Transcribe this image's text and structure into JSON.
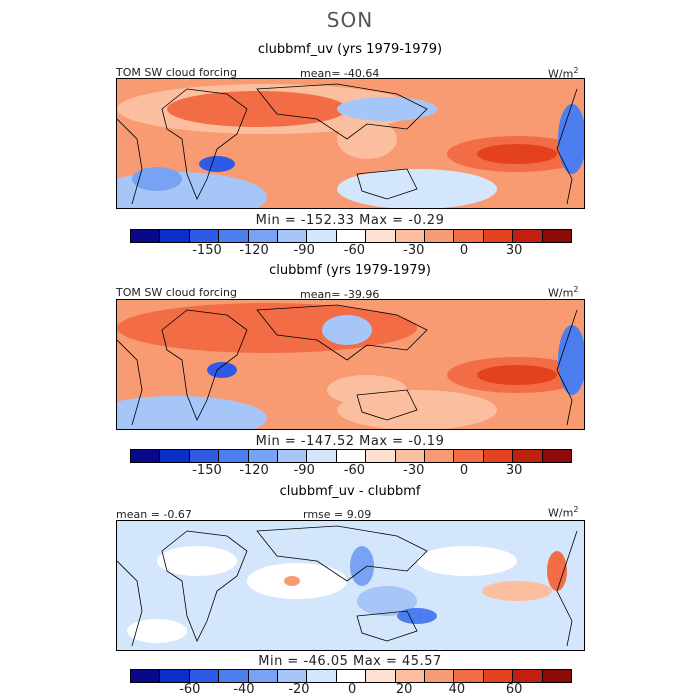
{
  "season": "SON",
  "colors": {
    "scale": [
      "#08088a",
      "#0a2ec8",
      "#2e5ae6",
      "#4c7ef0",
      "#78a2f4",
      "#a6c6f8",
      "#d4e6fc",
      "#ffffff",
      "#fde0cf",
      "#fbbfa0",
      "#f89a72",
      "#f26d45",
      "#e4411f",
      "#c02010",
      "#8e0a08"
    ]
  },
  "panels": [
    {
      "title": "clubbmf_uv (yrs 1979-1979)",
      "left_label": "TOM SW cloud forcing",
      "center_label": "mean= -40.64",
      "units": "W/m",
      "units_sup": "2",
      "stats": "Min = -152.33 Max =  -0.29",
      "ticks": [
        "-150",
        "-120",
        "-90",
        "-60",
        "-30",
        "0",
        "30"
      ]
    },
    {
      "title": "clubbmf (yrs 1979-1979)",
      "left_label": "TOM SW cloud forcing",
      "center_label": "mean= -39.96",
      "units": "W/m",
      "units_sup": "2",
      "stats": "Min = -147.52 Max =  -0.19",
      "ticks": [
        "-150",
        "-120",
        "-90",
        "-60",
        "-30",
        "0",
        "30"
      ]
    },
    {
      "title": "clubbmf_uv - clubbmf",
      "left_label": "mean =  -0.67",
      "center_label": "rmse =   9.09",
      "units": "W/m",
      "units_sup": "2",
      "stats": "Min = -46.05 Max =  45.57",
      "ticks": [
        "-60",
        "-40",
        "-20",
        "0",
        "20",
        "40",
        "60"
      ]
    }
  ]
}
